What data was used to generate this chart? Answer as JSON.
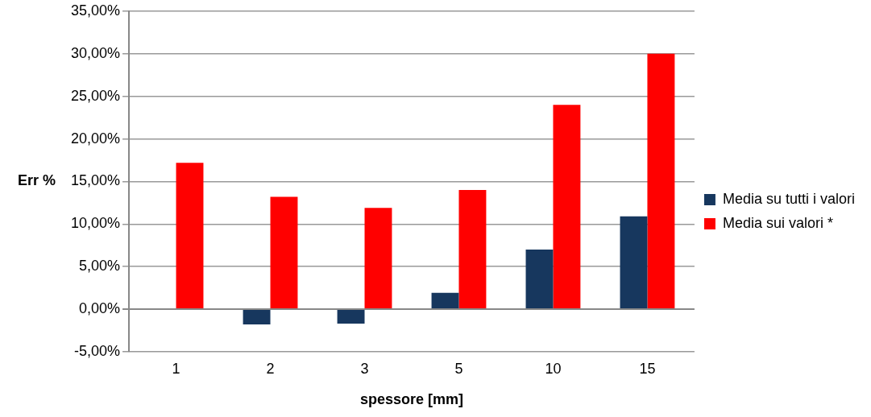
{
  "chart_data": {
    "type": "bar",
    "xlabel": "spessore [mm]",
    "ylabel": "Err %",
    "categories": [
      "1",
      "2",
      "3",
      "5",
      "10",
      "15"
    ],
    "series": [
      {
        "name": "Media su tutti i valori",
        "color": "#17375e",
        "values": [
          0.1,
          -1.8,
          -1.7,
          1.9,
          7.0,
          10.9
        ]
      },
      {
        "name": "Media sui valori *",
        "color": "#ff0000",
        "values": [
          17.2,
          13.2,
          11.9,
          14.0,
          24.0,
          30.0
        ]
      }
    ],
    "ylim": [
      -5,
      35
    ],
    "yticks": [
      {
        "value": -5,
        "label": "-5,00%"
      },
      {
        "value": 0,
        "label": "0,00%"
      },
      {
        "value": 5,
        "label": "5,00%"
      },
      {
        "value": 10,
        "label": "10,00%"
      },
      {
        "value": 15,
        "label": "15,00%"
      },
      {
        "value": 20,
        "label": "20,00%"
      },
      {
        "value": 25,
        "label": "25,00%"
      },
      {
        "value": 30,
        "label": "30,00%"
      },
      {
        "value": 35,
        "label": "35,00%"
      }
    ],
    "grid": "y",
    "legend": "right"
  }
}
